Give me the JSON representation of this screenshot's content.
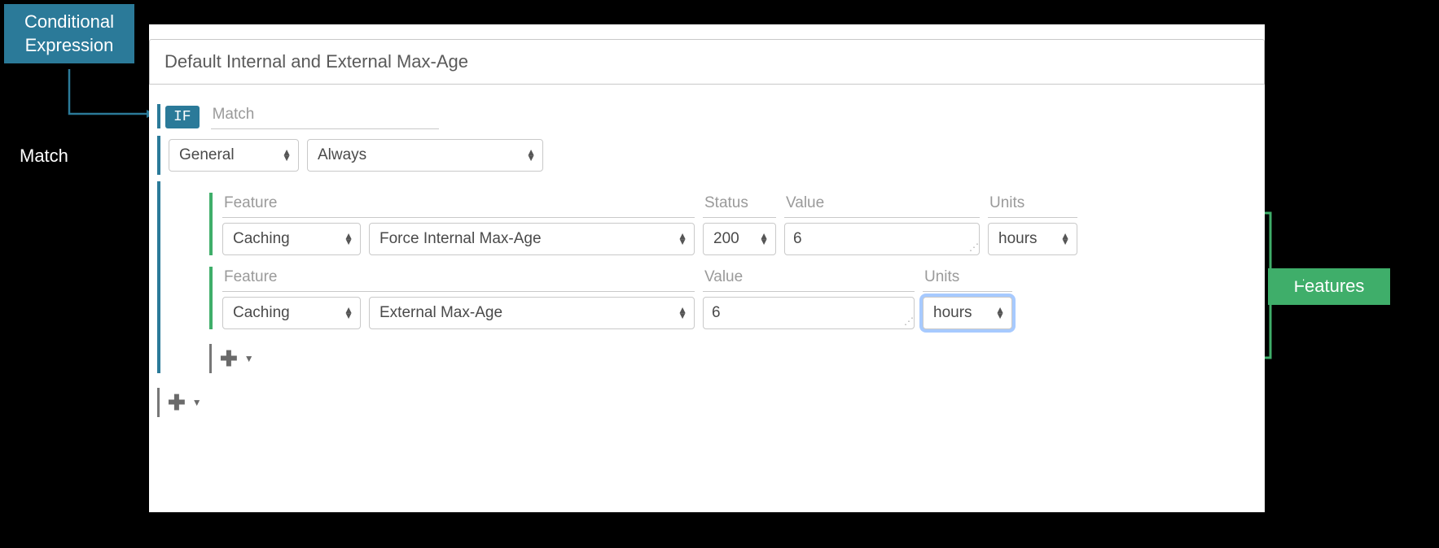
{
  "callouts": {
    "conditional_expression": "Conditional\nExpression",
    "match": "Match",
    "features": "Features"
  },
  "title": "Default Internal and External Max-Age",
  "if_badge": "IF",
  "if_header": "Match",
  "match_row": {
    "category": "General",
    "condition": "Always"
  },
  "feature_rows": [
    {
      "labels": {
        "feature": "Feature",
        "status": "Status",
        "value": "Value",
        "units": "Units"
      },
      "category": "Caching",
      "name": "Force Internal Max-Age",
      "status": "200",
      "value": "6",
      "units": "hours",
      "has_status": true,
      "units_focused": false
    },
    {
      "labels": {
        "feature": "Feature",
        "value": "Value",
        "units": "Units"
      },
      "category": "Caching",
      "name": "External Max-Age",
      "value": "6",
      "units": "hours",
      "has_status": false,
      "units_focused": true
    }
  ],
  "widths": {
    "match_category": 160,
    "match_condition": 290,
    "feature_category": 170,
    "feature_name": 400,
    "status": 90,
    "value": 240,
    "value_wide": 260,
    "units": 110
  },
  "colors": {
    "ce_bg": "#2b7a99",
    "features_bg": "#3fae6a",
    "text_muted": "#9a9a9a",
    "border": "#c9c9c9"
  }
}
